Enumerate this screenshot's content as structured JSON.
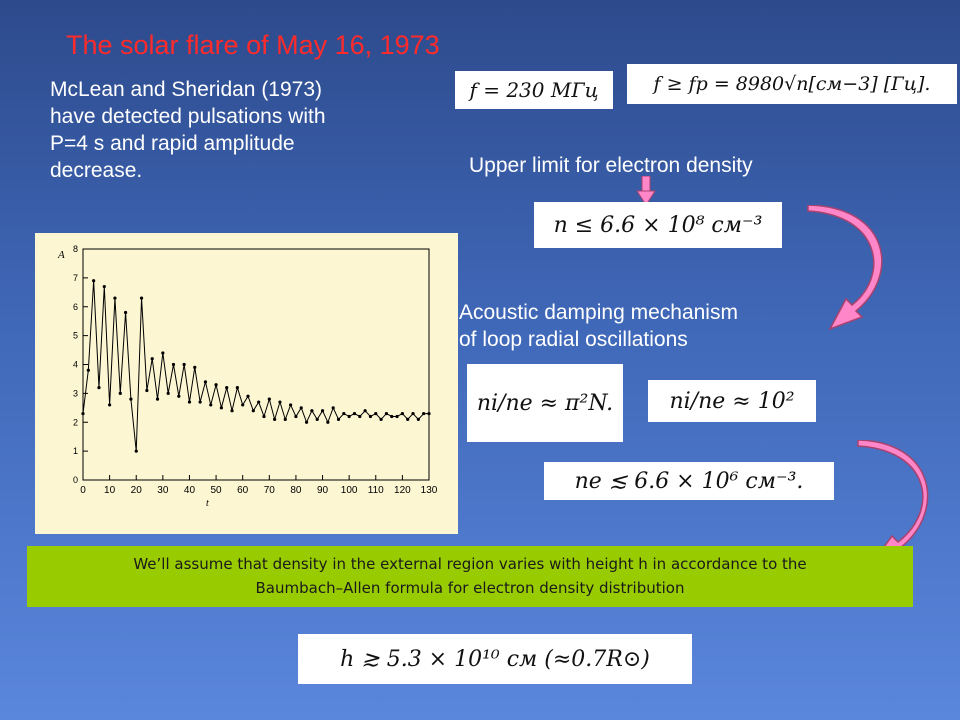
{
  "slide": {
    "title": "The solar flare of May 16, 1973",
    "intro_lines": [
      "McLean and Sheridan (1973)",
      "have detected pulsations with",
      "P=4 s and rapid amplitude",
      "decrease."
    ],
    "upper_limit_label": "Upper limit for electron density",
    "damping_lines": [
      "Acoustic damping mechanism",
      "of loop radial oscillations"
    ],
    "note_lines": [
      "We’ll assume that density in the external region varies with height h in accordance to the",
      "Baumbach–Allen formula for electron density distribution"
    ]
  },
  "formulas": {
    "freq": "f = 230  МГц",
    "plasma_f": "f ≥ fp = 8980√n[см−3] [Гц].",
    "density_limit": "n ≤ 6.6 × 10⁸ см⁻³",
    "ratio": "ni/ne ≈ π²N.",
    "ratio_value": "ni/ne ≈ 10²",
    "ne_limit": "ne ≲ 6.6 × 10⁶ см⁻³.",
    "height": "h ≳ 5.3 × 10¹⁰ см (≈0.7R⊙)"
  },
  "chart_data": {
    "type": "line",
    "title": "",
    "xlabel": "t",
    "ylabel": "A",
    "xlim": [
      0,
      130
    ],
    "ylim": [
      0,
      8
    ],
    "x_ticks": [
      "0",
      "10",
      "20",
      "30",
      "40",
      "50",
      "60",
      "70",
      "80",
      "90",
      "100",
      "110",
      "120",
      "130"
    ],
    "y_ticks": [
      "0",
      "1",
      "2",
      "3",
      "4",
      "5",
      "6",
      "7",
      "8"
    ],
    "series": [
      {
        "x": [
          0,
          2,
          4,
          6,
          8,
          10,
          12,
          14,
          16,
          18,
          20,
          22,
          24,
          26,
          28,
          30,
          32,
          34,
          36,
          38,
          40,
          42,
          44,
          46,
          48,
          50,
          52,
          54,
          56,
          58,
          60,
          62,
          64,
          66,
          68,
          70,
          72,
          74,
          76,
          78,
          80,
          82,
          84,
          86,
          88,
          90,
          92,
          94,
          96,
          98,
          100,
          102,
          104,
          106,
          108,
          110,
          112,
          114,
          116,
          118,
          120,
          122,
          124,
          126,
          128,
          130
        ],
        "y": [
          2.3,
          3.8,
          6.9,
          3.2,
          6.7,
          2.6,
          6.3,
          3.0,
          5.8,
          2.8,
          1.0,
          6.3,
          3.1,
          4.2,
          2.8,
          4.4,
          3.0,
          4.0,
          2.9,
          4.0,
          2.7,
          3.9,
          2.7,
          3.4,
          2.6,
          3.3,
          2.5,
          3.2,
          2.4,
          3.2,
          2.6,
          2.9,
          2.4,
          2.7,
          2.2,
          2.8,
          2.1,
          2.7,
          2.1,
          2.6,
          2.2,
          2.5,
          2.0,
          2.4,
          2.1,
          2.4,
          2.0,
          2.5,
          2.1,
          2.3,
          2.2,
          2.3,
          2.2,
          2.4,
          2.2,
          2.3,
          2.1,
          2.3,
          2.2,
          2.2,
          2.3,
          2.1,
          2.3,
          2.1,
          2.3,
          2.3
        ]
      }
    ]
  }
}
